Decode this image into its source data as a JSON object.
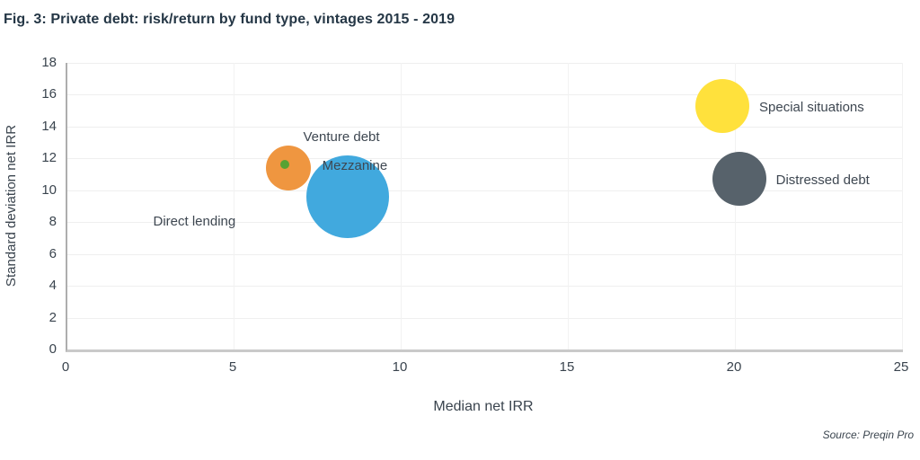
{
  "figure": {
    "title": "Fig. 3: Private debt: risk/return by fund type, vintages 2015 - 2019",
    "source": "Source: Preqin Pro"
  },
  "chart_data": {
    "type": "scatter",
    "variant": "bubble",
    "title": "Fig. 3: Private debt: risk/return by fund type, vintages 2015 - 2019",
    "xlabel": "Median net IRR",
    "ylabel": "Standard deviation net IRR",
    "xlim": [
      0,
      25
    ],
    "ylim": [
      0,
      18
    ],
    "x_ticks": [
      0,
      5,
      10,
      15,
      20,
      25
    ],
    "y_ticks": [
      0,
      2,
      4,
      6,
      8,
      10,
      12,
      14,
      16,
      18
    ],
    "grid": true,
    "legend_position": "none",
    "points": [
      {
        "name": "Direct lending",
        "x": 6.6,
        "y": 11.4,
        "radius_px": 25,
        "color": "#EF9640",
        "label": {
          "text": "Direct lending",
          "x": 3.8,
          "y": 8.0,
          "align": "center"
        }
      },
      {
        "name": "Mezzanine",
        "x": 8.4,
        "y": 9.6,
        "radius_px": 46,
        "color": "#41A9DE",
        "label": {
          "text": "Mezzanine",
          "x": 8.6,
          "y": 11.5,
          "align": "center"
        }
      },
      {
        "name": "Venture debt",
        "x": 6.5,
        "y": 11.6,
        "radius_px": 5,
        "color": "#59A233",
        "label": {
          "text": "Venture debt",
          "x": 8.2,
          "y": 13.3,
          "align": "center"
        }
      },
      {
        "name": "Special situations",
        "x": 19.6,
        "y": 15.3,
        "radius_px": 30,
        "color": "#FFE13C",
        "label": {
          "text": "Special situations",
          "x": 20.7,
          "y": 15.2,
          "align": "left"
        }
      },
      {
        "name": "Distressed debt",
        "x": 20.1,
        "y": 10.7,
        "radius_px": 30,
        "color": "#57626B",
        "label": {
          "text": "Distressed debt",
          "x": 21.2,
          "y": 10.6,
          "align": "left"
        }
      }
    ]
  }
}
